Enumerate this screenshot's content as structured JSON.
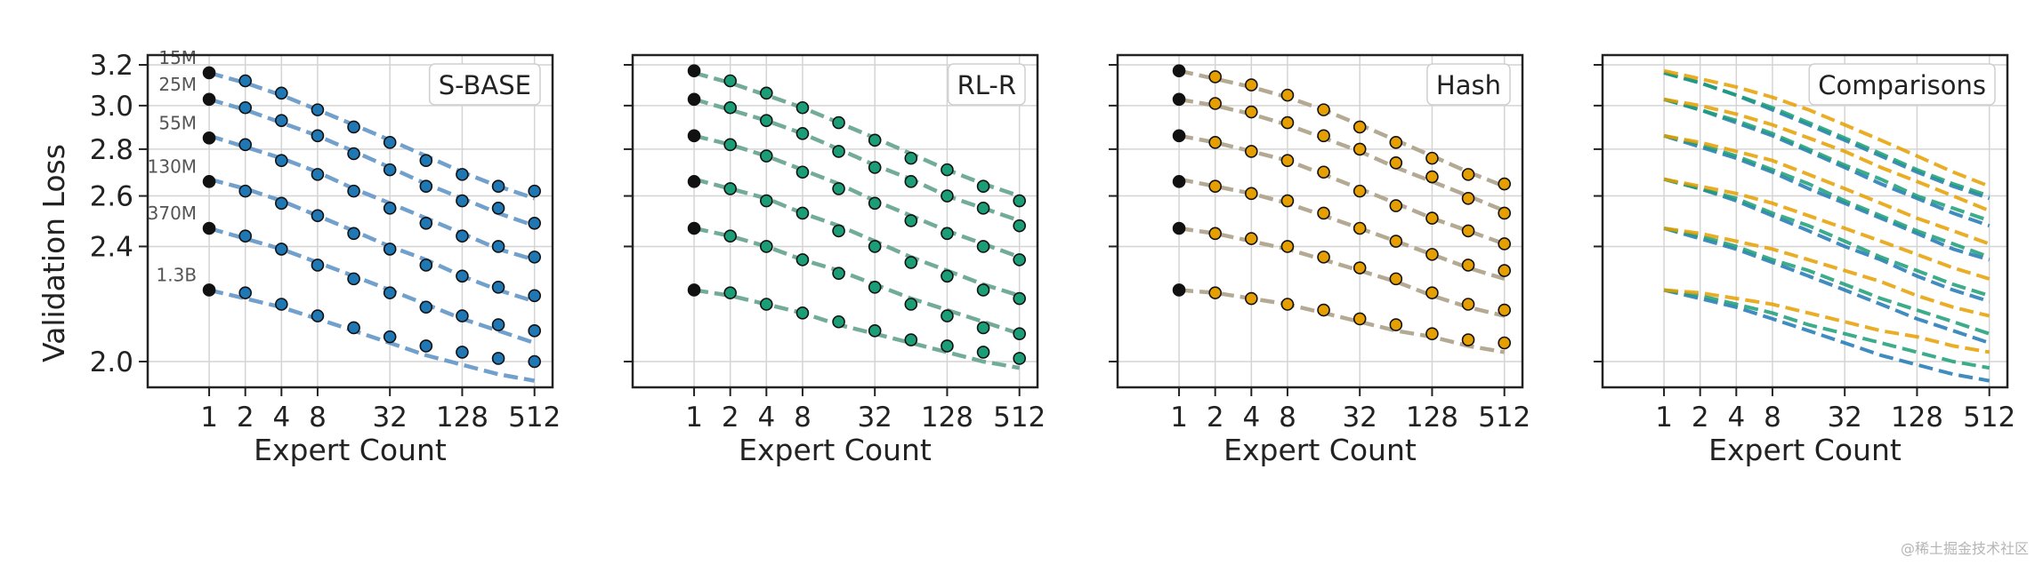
{
  "chart_data": [
    {
      "type": "scatter",
      "title": "S-BASE",
      "color": "#1f77b4",
      "fit_color": "#6a9bc9",
      "x": [
        1,
        2,
        4,
        8,
        16,
        32,
        64,
        128,
        256,
        512
      ],
      "model_sizes": [
        "15M",
        "25M",
        "55M",
        "130M",
        "370M",
        "1.3B"
      ],
      "points": [
        [
          3.16,
          3.12,
          3.06,
          2.98,
          2.9,
          2.83,
          2.75,
          2.69,
          2.64,
          2.62
        ],
        [
          3.03,
          2.99,
          2.93,
          2.86,
          2.78,
          2.71,
          2.64,
          2.58,
          2.55,
          2.49
        ],
        [
          2.85,
          2.82,
          2.75,
          2.69,
          2.62,
          2.55,
          2.49,
          2.44,
          2.4,
          2.36
        ],
        [
          2.66,
          2.62,
          2.57,
          2.52,
          2.45,
          2.39,
          2.33,
          2.29,
          2.25,
          2.22
        ],
        [
          2.47,
          2.44,
          2.39,
          2.33,
          2.28,
          2.23,
          2.18,
          2.15,
          2.12,
          2.1
        ],
        [
          2.24,
          2.23,
          2.19,
          2.15,
          2.11,
          2.08,
          2.05,
          2.03,
          2.01,
          2.0
        ]
      ],
      "fits": [
        [
          3.16,
          3.11,
          3.05,
          2.98,
          2.91,
          2.84,
          2.77,
          2.7,
          2.64,
          2.59
        ],
        [
          3.03,
          2.98,
          2.92,
          2.86,
          2.79,
          2.72,
          2.65,
          2.59,
          2.53,
          2.48
        ],
        [
          2.86,
          2.81,
          2.76,
          2.7,
          2.63,
          2.57,
          2.51,
          2.45,
          2.39,
          2.35
        ],
        [
          2.67,
          2.63,
          2.58,
          2.52,
          2.46,
          2.4,
          2.35,
          2.29,
          2.24,
          2.2
        ],
        [
          2.47,
          2.43,
          2.39,
          2.34,
          2.29,
          2.24,
          2.19,
          2.14,
          2.1,
          2.06
        ],
        [
          2.24,
          2.21,
          2.18,
          2.14,
          2.1,
          2.06,
          2.02,
          1.99,
          1.96,
          1.94
        ]
      ]
    },
    {
      "type": "scatter",
      "title": "RL-R",
      "color": "#1b9e77",
      "fit_color": "#6aa894",
      "x": [
        1,
        2,
        4,
        8,
        16,
        32,
        64,
        128,
        256,
        512
      ],
      "points": [
        [
          3.17,
          3.12,
          3.06,
          2.99,
          2.92,
          2.84,
          2.76,
          2.71,
          2.64,
          2.58
        ],
        [
          3.03,
          2.99,
          2.93,
          2.87,
          2.79,
          2.72,
          2.66,
          2.6,
          2.55,
          2.48
        ],
        [
          2.86,
          2.82,
          2.77,
          2.7,
          2.63,
          2.57,
          2.5,
          2.45,
          2.4,
          2.35
        ],
        [
          2.66,
          2.63,
          2.58,
          2.53,
          2.46,
          2.4,
          2.34,
          2.29,
          2.24,
          2.21
        ],
        [
          2.47,
          2.44,
          2.4,
          2.35,
          2.3,
          2.25,
          2.19,
          2.15,
          2.11,
          2.09
        ],
        [
          2.24,
          2.23,
          2.19,
          2.16,
          2.13,
          2.1,
          2.07,
          2.05,
          2.03,
          2.01
        ]
      ],
      "fits": [
        [
          3.16,
          3.11,
          3.05,
          2.99,
          2.92,
          2.85,
          2.78,
          2.71,
          2.65,
          2.6
        ],
        [
          3.03,
          2.98,
          2.93,
          2.87,
          2.8,
          2.73,
          2.67,
          2.6,
          2.55,
          2.5
        ],
        [
          2.86,
          2.82,
          2.77,
          2.71,
          2.65,
          2.58,
          2.52,
          2.46,
          2.41,
          2.36
        ],
        [
          2.67,
          2.63,
          2.59,
          2.53,
          2.48,
          2.42,
          2.36,
          2.31,
          2.26,
          2.22
        ],
        [
          2.47,
          2.44,
          2.4,
          2.35,
          2.31,
          2.26,
          2.21,
          2.17,
          2.13,
          2.09
        ],
        [
          2.24,
          2.22,
          2.19,
          2.16,
          2.12,
          2.09,
          2.06,
          2.03,
          2.0,
          1.98
        ]
      ]
    },
    {
      "type": "scatter",
      "title": "Hash",
      "color": "#e69f00",
      "fit_color": "#b0a58e",
      "x": [
        1,
        2,
        4,
        8,
        16,
        32,
        64,
        128,
        256,
        512
      ],
      "points": [
        [
          3.17,
          3.14,
          3.1,
          3.05,
          2.98,
          2.9,
          2.83,
          2.76,
          2.69,
          2.65
        ],
        [
          3.03,
          3.01,
          2.97,
          2.92,
          2.86,
          2.8,
          2.74,
          2.68,
          2.59,
          2.53
        ],
        [
          2.86,
          2.83,
          2.79,
          2.75,
          2.7,
          2.62,
          2.56,
          2.51,
          2.46,
          2.41
        ],
        [
          2.66,
          2.64,
          2.61,
          2.58,
          2.53,
          2.47,
          2.42,
          2.37,
          2.33,
          2.31
        ],
        [
          2.47,
          2.45,
          2.43,
          2.4,
          2.36,
          2.32,
          2.28,
          2.23,
          2.19,
          2.17
        ],
        [
          2.24,
          2.23,
          2.21,
          2.19,
          2.17,
          2.14,
          2.12,
          2.09,
          2.07,
          2.06
        ]
      ],
      "fits": [
        [
          3.17,
          3.13,
          3.09,
          3.04,
          2.98,
          2.91,
          2.84,
          2.77,
          2.7,
          2.64
        ],
        [
          3.03,
          3.0,
          2.96,
          2.91,
          2.85,
          2.79,
          2.72,
          2.66,
          2.6,
          2.54
        ],
        [
          2.86,
          2.83,
          2.79,
          2.75,
          2.69,
          2.63,
          2.57,
          2.51,
          2.46,
          2.41
        ],
        [
          2.67,
          2.64,
          2.61,
          2.57,
          2.52,
          2.47,
          2.42,
          2.37,
          2.32,
          2.28
        ],
        [
          2.47,
          2.45,
          2.42,
          2.39,
          2.35,
          2.31,
          2.27,
          2.22,
          2.18,
          2.15
        ],
        [
          2.24,
          2.23,
          2.21,
          2.19,
          2.16,
          2.13,
          2.1,
          2.08,
          2.05,
          2.03
        ]
      ]
    },
    {
      "type": "line",
      "title": "Comparisons",
      "x": [
        1,
        2,
        4,
        8,
        16,
        32,
        64,
        128,
        256,
        512
      ]
    }
  ],
  "axes": {
    "ylabel": "Validation Loss",
    "xlabel": "Expert Count",
    "x_ticks": [
      "1",
      "2",
      "4",
      "8",
      "32",
      "128",
      "512"
    ],
    "x_tick_values": [
      1,
      2,
      4,
      8,
      32,
      128,
      512
    ],
    "y_ticks": [
      "3.2",
      "3.0",
      "2.8",
      "2.6",
      "2.4",
      "2.0"
    ],
    "y_tick_values": [
      3.2,
      3.0,
      2.8,
      2.6,
      2.4,
      2.0
    ],
    "y_scale": "log",
    "ylim": [
      1.92,
      3.25
    ],
    "xlim_log2": [
      -1.7,
      9.5
    ],
    "grid": true,
    "legend_placement": "top-right"
  },
  "watermark": "@稀土掘金技术社区"
}
